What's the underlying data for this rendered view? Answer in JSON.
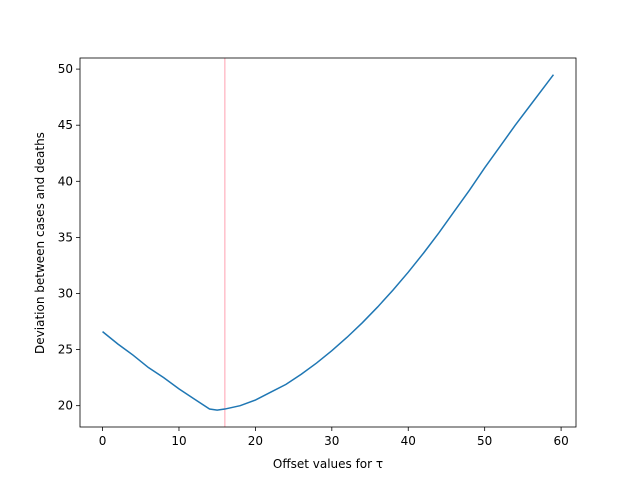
{
  "chart_data": {
    "type": "line",
    "xlabel": "Offset values for τ",
    "ylabel": "Deviation between cases and deaths",
    "x": [
      0,
      2,
      4,
      6,
      8,
      10,
      12,
      14,
      15,
      16,
      18,
      20,
      22,
      24,
      26,
      28,
      30,
      32,
      34,
      36,
      38,
      40,
      42,
      44,
      46,
      48,
      50,
      52,
      54,
      56,
      58,
      59
    ],
    "series": [
      {
        "color": "#1f77b4",
        "values": [
          26.6,
          25.5,
          24.5,
          23.4,
          22.5,
          21.5,
          20.6,
          19.7,
          19.6,
          19.7,
          20.0,
          20.5,
          21.2,
          21.9,
          22.8,
          23.8,
          24.9,
          26.1,
          27.4,
          28.8,
          30.3,
          31.9,
          33.6,
          35.4,
          37.3,
          39.2,
          41.2,
          43.1,
          45.0,
          46.8,
          48.6,
          49.5
        ]
      }
    ],
    "vline": {
      "x": 16,
      "color": "pink"
    },
    "xlim": [
      -2.95,
      61.95
    ],
    "xticks": [
      0,
      10,
      20,
      30,
      40,
      50,
      60
    ],
    "ylim": [
      18.1,
      50.99
    ],
    "yticks": [
      20,
      25,
      30,
      35,
      40,
      45,
      50
    ]
  }
}
